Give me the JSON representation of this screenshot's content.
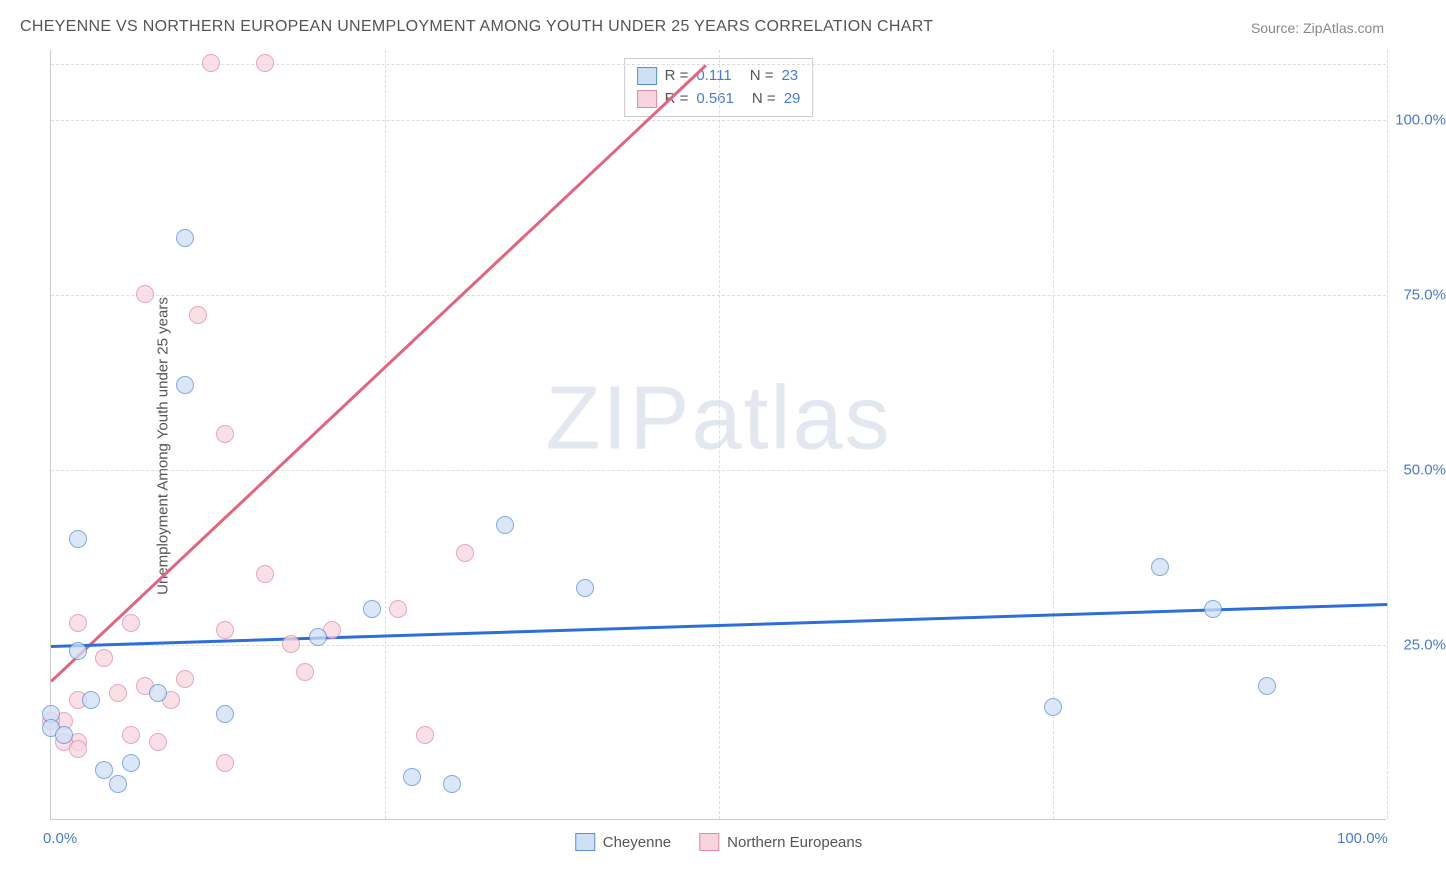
{
  "title": "CHEYENNE VS NORTHERN EUROPEAN UNEMPLOYMENT AMONG YOUTH UNDER 25 YEARS CORRELATION CHART",
  "source": "Source: ZipAtlas.com",
  "y_axis_title": "Unemployment Among Youth under 25 years",
  "watermark_a": "ZIP",
  "watermark_b": "atlas",
  "chart": {
    "type": "scatter",
    "xlim": [
      0,
      100
    ],
    "ylim": [
      0,
      110
    ],
    "x_tick_labels": [
      {
        "pos": 0,
        "label": "0.0%"
      },
      {
        "pos": 100,
        "label": "100.0%"
      }
    ],
    "x_gridlines": [
      0,
      25,
      50,
      75,
      100
    ],
    "y_tick_labels": [
      {
        "pos": 25,
        "label": "25.0%"
      },
      {
        "pos": 50,
        "label": "50.0%"
      },
      {
        "pos": 75,
        "label": "75.0%"
      },
      {
        "pos": 100,
        "label": "100.0%"
      }
    ],
    "y_gridlines": [
      25,
      50,
      75,
      100,
      108
    ],
    "background_color": "#ffffff",
    "grid_color": "#dddddd",
    "axis_color": "#cccccc"
  },
  "legend_top": {
    "rows": [
      {
        "swatch": "blue",
        "r_label": "R  =",
        "r_val": "0.111",
        "n_label": "N  =",
        "n_val": "23"
      },
      {
        "swatch": "pink",
        "r_label": "R  =",
        "r_val": "0.561",
        "n_label": "N  =",
        "n_val": "29"
      }
    ]
  },
  "legend_bottom": {
    "items": [
      {
        "swatch": "blue",
        "label": "Cheyenne"
      },
      {
        "swatch": "pink",
        "label": "Northern Europeans"
      }
    ]
  },
  "series": {
    "cheyenne": {
      "color_fill": "#cfe0f5",
      "color_border": "#5a8fd6",
      "marker": "circle",
      "marker_size": 18,
      "points": [
        [
          2,
          40
        ],
        [
          10,
          83
        ],
        [
          10,
          62
        ],
        [
          34,
          42
        ],
        [
          40,
          33
        ],
        [
          83,
          36
        ],
        [
          87,
          30
        ],
        [
          75,
          16
        ],
        [
          91,
          19
        ],
        [
          2,
          24
        ],
        [
          3,
          17
        ],
        [
          0,
          15
        ],
        [
          0,
          13
        ],
        [
          13,
          15
        ],
        [
          4,
          7
        ],
        [
          5,
          5
        ],
        [
          6,
          8
        ],
        [
          8,
          18
        ],
        [
          1,
          12
        ],
        [
          24,
          30
        ],
        [
          27,
          6
        ],
        [
          30,
          5
        ],
        [
          20,
          26
        ]
      ],
      "regression": {
        "x1": 0,
        "y1": 25,
        "x2": 100,
        "y2": 31,
        "color": "#2d6fd4",
        "width": 2.5
      }
    },
    "northern_europeans": {
      "color_fill": "#f8d5de",
      "color_border": "#e08ca3",
      "marker": "circle",
      "marker_size": 18,
      "points": [
        [
          12,
          108
        ],
        [
          16,
          108
        ],
        [
          7,
          75
        ],
        [
          11,
          72
        ],
        [
          13,
          55
        ],
        [
          31,
          38
        ],
        [
          26,
          30
        ],
        [
          16,
          35
        ],
        [
          18,
          25
        ],
        [
          19,
          21
        ],
        [
          21,
          27
        ],
        [
          13,
          27
        ],
        [
          2,
          28
        ],
        [
          6,
          28
        ],
        [
          2,
          17
        ],
        [
          4,
          23
        ],
        [
          1,
          14
        ],
        [
          2,
          11
        ],
        [
          6,
          12
        ],
        [
          5,
          18
        ],
        [
          9,
          17
        ],
        [
          0,
          14
        ],
        [
          1,
          11
        ],
        [
          2,
          10
        ],
        [
          8,
          11
        ],
        [
          13,
          8
        ],
        [
          28,
          12
        ],
        [
          7,
          19
        ],
        [
          10,
          20
        ]
      ],
      "regression": {
        "x1": 0,
        "y1": 20,
        "x2": 49,
        "y2": 108,
        "color": "#e0657f",
        "width": 2.5
      }
    }
  }
}
